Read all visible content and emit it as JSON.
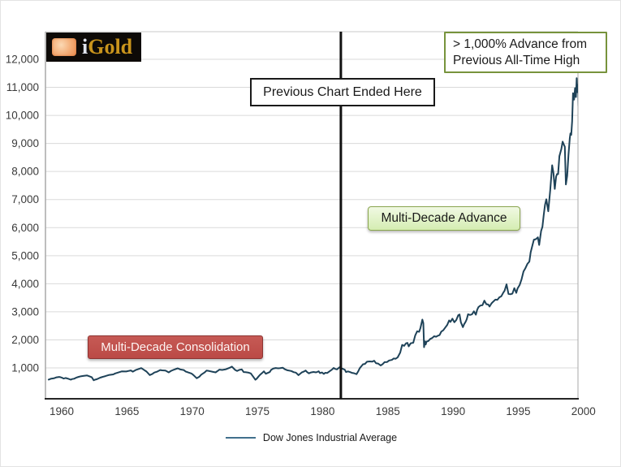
{
  "logo": {
    "text_i": "i",
    "text_gold": "Gold"
  },
  "annotations": {
    "prev_chart": {
      "label": "Previous Chart Ended Here",
      "x_year": 1981.4
    },
    "advance_callout": {
      "line1": "> 1,000% Advance from",
      "line2": "Previous All-Time High"
    },
    "advance_box": {
      "label": "Multi-Decade Advance"
    },
    "consolidation_box": {
      "label": "Multi-Decade Consolidation"
    }
  },
  "legend": {
    "label": "Dow Jones Industrial Average"
  },
  "colors": {
    "line": "#1e4258",
    "legend_line": "#41708d",
    "gridline": "#dadada",
    "axis_bottom": "#262626",
    "axis_side": "#a8a8a8",
    "axis_top": "#c9c9c9",
    "tick_label": "#3a3a3a",
    "vertical_rule": "#111111",
    "green_border": "#77933c",
    "green_fill": "#dcefbc",
    "red_fill": "#c0504d",
    "red_border": "#8e3432"
  },
  "chart_data": {
    "type": "line",
    "title": "",
    "xlabel": "",
    "ylabel": "",
    "grid": "horizontal",
    "legend_position": "bottom-center",
    "xlim": [
      1958.75,
      2000.3
    ],
    "ylim": [
      -100,
      13000
    ],
    "xticks": [
      1960,
      1965,
      1970,
      1975,
      1980,
      1985,
      1990,
      1995,
      2000
    ],
    "yticks": [
      1000,
      2000,
      3000,
      4000,
      5000,
      6000,
      7000,
      8000,
      9000,
      10000,
      11000,
      12000
    ],
    "series": [
      {
        "name": "Dow Jones Industrial Average",
        "points": [
          [
            1959.0,
            583
          ],
          [
            1959.2,
            617
          ],
          [
            1959.4,
            630
          ],
          [
            1959.6,
            664
          ],
          [
            1959.8,
            679
          ],
          [
            1959.9,
            670
          ],
          [
            1960.0,
            655
          ],
          [
            1960.15,
            622
          ],
          [
            1960.3,
            640
          ],
          [
            1960.5,
            616
          ],
          [
            1960.7,
            580
          ],
          [
            1960.8,
            602
          ],
          [
            1960.95,
            616
          ],
          [
            1961.1,
            649
          ],
          [
            1961.3,
            683
          ],
          [
            1961.5,
            705
          ],
          [
            1961.7,
            719
          ],
          [
            1961.95,
            731
          ],
          [
            1962.1,
            706
          ],
          [
            1962.3,
            671
          ],
          [
            1962.45,
            561
          ],
          [
            1962.55,
            579
          ],
          [
            1962.7,
            599
          ],
          [
            1962.95,
            652
          ],
          [
            1963.15,
            683
          ],
          [
            1963.35,
            707
          ],
          [
            1963.6,
            745
          ],
          [
            1963.95,
            767
          ],
          [
            1964.1,
            802
          ],
          [
            1964.3,
            831
          ],
          [
            1964.6,
            875
          ],
          [
            1964.95,
            874
          ],
          [
            1965.1,
            889
          ],
          [
            1965.3,
            911
          ],
          [
            1965.45,
            868
          ],
          [
            1965.7,
            931
          ],
          [
            1965.95,
            969
          ],
          [
            1966.1,
            995
          ],
          [
            1966.3,
            934
          ],
          [
            1966.5,
            870
          ],
          [
            1966.75,
            744
          ],
          [
            1966.95,
            785
          ],
          [
            1967.1,
            836
          ],
          [
            1967.3,
            865
          ],
          [
            1967.55,
            926
          ],
          [
            1967.7,
            913
          ],
          [
            1967.95,
            905
          ],
          [
            1968.2,
            840
          ],
          [
            1968.4,
            898
          ],
          [
            1968.6,
            935
          ],
          [
            1968.9,
            985
          ],
          [
            1969.1,
            946
          ],
          [
            1969.35,
            925
          ],
          [
            1969.5,
            873
          ],
          [
            1969.7,
            837
          ],
          [
            1969.95,
            800
          ],
          [
            1970.1,
            744
          ],
          [
            1970.35,
            631
          ],
          [
            1970.55,
            684
          ],
          [
            1970.7,
            760
          ],
          [
            1970.95,
            839
          ],
          [
            1971.1,
            904
          ],
          [
            1971.3,
            891
          ],
          [
            1971.6,
            858
          ],
          [
            1971.8,
            840
          ],
          [
            1971.95,
            890
          ],
          [
            1972.1,
            940
          ],
          [
            1972.3,
            929
          ],
          [
            1972.6,
            953
          ],
          [
            1972.95,
            1020
          ],
          [
            1973.05,
            1047
          ],
          [
            1973.3,
            927
          ],
          [
            1973.45,
            891
          ],
          [
            1973.6,
            927
          ],
          [
            1973.8,
            948
          ],
          [
            1973.95,
            851
          ],
          [
            1974.1,
            846
          ],
          [
            1974.3,
            836
          ],
          [
            1974.5,
            802
          ],
          [
            1974.7,
            677
          ],
          [
            1974.85,
            578
          ],
          [
            1974.95,
            616
          ],
          [
            1975.1,
            703
          ],
          [
            1975.2,
            753
          ],
          [
            1975.4,
            836
          ],
          [
            1975.5,
            878
          ],
          [
            1975.65,
            793
          ],
          [
            1975.95,
            852
          ],
          [
            1976.05,
            929
          ],
          [
            1976.2,
            975
          ],
          [
            1976.4,
            997
          ],
          [
            1976.6,
            985
          ],
          [
            1976.75,
            990
          ],
          [
            1976.95,
            1005
          ],
          [
            1977.1,
            954
          ],
          [
            1977.3,
            916
          ],
          [
            1977.6,
            890
          ],
          [
            1977.8,
            847
          ],
          [
            1977.95,
            831
          ],
          [
            1978.15,
            742
          ],
          [
            1978.4,
            837
          ],
          [
            1978.55,
            866
          ],
          [
            1978.7,
            907
          ],
          [
            1978.8,
            858
          ],
          [
            1978.95,
            805
          ],
          [
            1979.1,
            839
          ],
          [
            1979.3,
            856
          ],
          [
            1979.5,
            842
          ],
          [
            1979.7,
            879
          ],
          [
            1979.8,
            815
          ],
          [
            1979.95,
            839
          ],
          [
            1980.1,
            786
          ],
          [
            1980.2,
            826
          ],
          [
            1980.35,
            817
          ],
          [
            1980.5,
            867
          ],
          [
            1980.7,
            932
          ],
          [
            1980.85,
            1000
          ],
          [
            1980.95,
            964
          ],
          [
            1981.1,
            947
          ],
          [
            1981.3,
            1024
          ],
          [
            1981.5,
            977
          ],
          [
            1981.7,
            936
          ],
          [
            1981.8,
            853
          ],
          [
            1981.95,
            875
          ],
          [
            1982.1,
            851
          ],
          [
            1982.25,
            824
          ],
          [
            1982.4,
            812
          ],
          [
            1982.6,
            777
          ],
          [
            1982.75,
            896
          ],
          [
            1982.85,
            991
          ],
          [
            1982.95,
            1047
          ],
          [
            1983.1,
            1130
          ],
          [
            1983.25,
            1141
          ],
          [
            1983.4,
            1221
          ],
          [
            1983.6,
            1233
          ],
          [
            1983.8,
            1224
          ],
          [
            1983.95,
            1259
          ],
          [
            1984.1,
            1165
          ],
          [
            1984.25,
            1155
          ],
          [
            1984.45,
            1087
          ],
          [
            1984.6,
            1133
          ],
          [
            1984.75,
            1206
          ],
          [
            1984.95,
            1212
          ],
          [
            1985.1,
            1266
          ],
          [
            1985.3,
            1284
          ],
          [
            1985.45,
            1335
          ],
          [
            1985.6,
            1328
          ],
          [
            1985.75,
            1374
          ],
          [
            1985.95,
            1547
          ],
          [
            1986.1,
            1818
          ],
          [
            1986.25,
            1784
          ],
          [
            1986.4,
            1877
          ],
          [
            1986.5,
            1893
          ],
          [
            1986.6,
            1768
          ],
          [
            1986.75,
            1878
          ],
          [
            1986.95,
            1896
          ],
          [
            1987.1,
            2158
          ],
          [
            1987.25,
            2305
          ],
          [
            1987.4,
            2286
          ],
          [
            1987.5,
            2418
          ],
          [
            1987.65,
            2722
          ],
          [
            1987.72,
            2596
          ],
          [
            1987.78,
            1738
          ],
          [
            1987.85,
            1950
          ],
          [
            1987.9,
            1834
          ],
          [
            1987.97,
            1939
          ],
          [
            1988.1,
            1958
          ],
          [
            1988.25,
            2032
          ],
          [
            1988.4,
            2064
          ],
          [
            1988.55,
            2129
          ],
          [
            1988.7,
            2112
          ],
          [
            1988.85,
            2149
          ],
          [
            1988.97,
            2169
          ],
          [
            1989.1,
            2294
          ],
          [
            1989.25,
            2341
          ],
          [
            1989.4,
            2440
          ],
          [
            1989.55,
            2531
          ],
          [
            1989.7,
            2692
          ],
          [
            1989.8,
            2639
          ],
          [
            1989.95,
            2753
          ],
          [
            1990.1,
            2627
          ],
          [
            1990.25,
            2708
          ],
          [
            1990.4,
            2880
          ],
          [
            1990.5,
            2905
          ],
          [
            1990.6,
            2632
          ],
          [
            1990.75,
            2452
          ],
          [
            1990.85,
            2560
          ],
          [
            1990.95,
            2634
          ],
          [
            1991.05,
            2736
          ],
          [
            1991.15,
            2914
          ],
          [
            1991.3,
            2888
          ],
          [
            1991.45,
            2907
          ],
          [
            1991.6,
            3017
          ],
          [
            1991.75,
            2895
          ],
          [
            1991.85,
            3069
          ],
          [
            1991.95,
            3169
          ],
          [
            1992.1,
            3223
          ],
          [
            1992.25,
            3235
          ],
          [
            1992.4,
            3396
          ],
          [
            1992.55,
            3272
          ],
          [
            1992.7,
            3257
          ],
          [
            1992.8,
            3187
          ],
          [
            1992.95,
            3301
          ],
          [
            1993.1,
            3371
          ],
          [
            1993.25,
            3435
          ],
          [
            1993.4,
            3427
          ],
          [
            1993.55,
            3516
          ],
          [
            1993.7,
            3555
          ],
          [
            1993.85,
            3684
          ],
          [
            1993.95,
            3754
          ],
          [
            1994.1,
            3978
          ],
          [
            1994.25,
            3636
          ],
          [
            1994.4,
            3625
          ],
          [
            1994.55,
            3647
          ],
          [
            1994.7,
            3843
          ],
          [
            1994.85,
            3674
          ],
          [
            1994.95,
            3834
          ],
          [
            1995.1,
            3954
          ],
          [
            1995.25,
            4158
          ],
          [
            1995.4,
            4436
          ],
          [
            1995.55,
            4557
          ],
          [
            1995.7,
            4709
          ],
          [
            1995.85,
            4789
          ],
          [
            1995.95,
            5117
          ],
          [
            1996.1,
            5395
          ],
          [
            1996.2,
            5570
          ],
          [
            1996.35,
            5587
          ],
          [
            1996.5,
            5655
          ],
          [
            1996.6,
            5383
          ],
          [
            1996.75,
            5883
          ],
          [
            1996.85,
            6029
          ],
          [
            1996.95,
            6448
          ],
          [
            1997.05,
            6813
          ],
          [
            1997.15,
            7009
          ],
          [
            1997.3,
            6584
          ],
          [
            1997.45,
            7331
          ],
          [
            1997.6,
            8223
          ],
          [
            1997.7,
            7945
          ],
          [
            1997.8,
            7381
          ],
          [
            1997.9,
            7823
          ],
          [
            1997.97,
            7908
          ],
          [
            1998.05,
            7907
          ],
          [
            1998.15,
            8546
          ],
          [
            1998.3,
            8800
          ],
          [
            1998.4,
            9064
          ],
          [
            1998.5,
            8953
          ],
          [
            1998.57,
            8883
          ],
          [
            1998.65,
            7539
          ],
          [
            1998.75,
            7843
          ],
          [
            1998.85,
            8593
          ],
          [
            1998.95,
            9181
          ],
          [
            1999.0,
            9358
          ],
          [
            1999.06,
            9307
          ],
          [
            1999.13,
            9787
          ],
          [
            1999.2,
            10789
          ],
          [
            1999.28,
            10560
          ],
          [
            1999.35,
            10971
          ],
          [
            1999.42,
            10655
          ],
          [
            1999.48,
            11326
          ],
          [
            1999.53,
            10829
          ],
          [
            1999.58,
            11090
          ],
          [
            1999.63,
            10337
          ]
        ]
      }
    ]
  }
}
